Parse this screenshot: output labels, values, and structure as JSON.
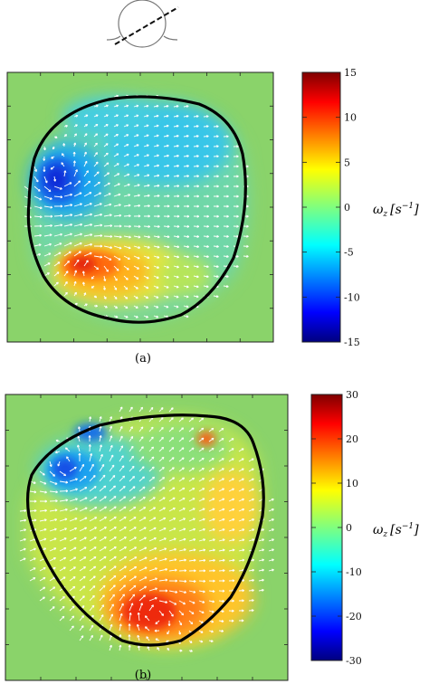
{
  "chart_data": [
    {
      "type": "heatmap",
      "panel_label": "(a)",
      "colorbar": {
        "label_main": "ω",
        "label_sub": "z",
        "label_unit": "[s",
        "label_exp": "−1",
        "label_close": "]",
        "range": [
          -15,
          15
        ],
        "ticks": [
          15,
          10,
          5,
          0,
          -5,
          -10,
          -15
        ],
        "tick_labels": [
          "15",
          "10",
          "5",
          "0",
          "-5",
          "-10",
          "-15"
        ]
      },
      "background_value": 0,
      "features": [
        {
          "name": "negative-vortex",
          "peak_value": -12
        },
        {
          "name": "positive-vortex",
          "peak_value": 12
        }
      ],
      "overlay": "white velocity vectors",
      "boundary": "black outline"
    },
    {
      "type": "heatmap",
      "panel_label": "(b)",
      "colorbar": {
        "label_main": "ω",
        "label_sub": "z",
        "label_unit": "[s",
        "label_exp": "−1",
        "label_close": "]",
        "range": [
          -30,
          30
        ],
        "ticks": [
          30,
          20,
          10,
          0,
          -10,
          -20,
          -30
        ],
        "tick_labels": [
          "30",
          "20",
          "10",
          "0",
          "-10",
          "-20",
          "-30"
        ]
      },
      "background_value": 0,
      "features": [
        {
          "name": "negative-vortex",
          "peak_value": -25
        },
        {
          "name": "positive-vortex",
          "peak_value": 26
        },
        {
          "name": "positive-spot",
          "peak_value": 20
        }
      ],
      "overlay": "white velocity vectors",
      "boundary": "black outline"
    }
  ],
  "colors": {
    "background_field": "#8ad36a",
    "outline": "#000000",
    "vectors": "#ffffff"
  },
  "schematic": {
    "icon": "circle-with-diagonal-cut-icon"
  }
}
